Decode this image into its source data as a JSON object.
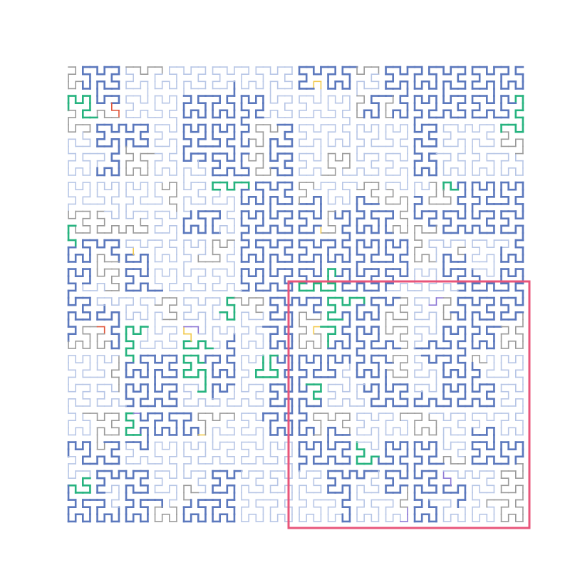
{
  "chart_data": {
    "type": "hilbert-curve",
    "order": 6,
    "grid_cells": 64,
    "highlight": {
      "quadrant": "bottom-right",
      "color": "#e8557a"
    },
    "segment_categories": [
      {
        "key": "blue",
        "color": "#5b78bd",
        "share": 0.33
      },
      {
        "key": "lightblue",
        "color": "#b7c6e6",
        "share": 0.3
      },
      {
        "key": "gray",
        "color": "#9a9a9a",
        "share": 0.25
      },
      {
        "key": "green",
        "color": "#26b37f",
        "share": 0.07
      },
      {
        "key": "yellow",
        "color": "#f2c94c",
        "share": 0.03
      },
      {
        "key": "purple",
        "color": "#8e79d6",
        "share": 0.015
      },
      {
        "key": "red",
        "color": "#e0563b",
        "share": 0.005
      }
    ]
  }
}
